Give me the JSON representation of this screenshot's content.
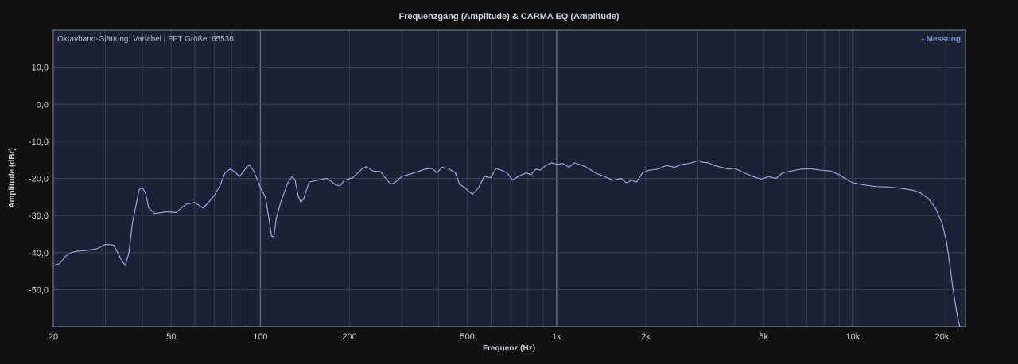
{
  "colors": {
    "background": "#111111",
    "plot_background": "#1b2233",
    "grid_minor": "#3a4254",
    "grid_major": "#5c6475",
    "axis_border": "#8a8f99",
    "series_line": "#9aa6d6",
    "legend_text": "#7e8fd6",
    "text": "#cfd3da"
  },
  "chart_data": {
    "type": "line",
    "title": "Frequenzgang (Amplitude) & CARMA EQ (Amplitude)",
    "annotation": "Oktavband-Glättung: Variabel | FFT Größe: 65536",
    "xlabel": "Frequenz (Hz)",
    "ylabel": "Amplitude (dBr)",
    "xscale": "log",
    "xlim": [
      20,
      24000
    ],
    "ylim": [
      -60,
      20
    ],
    "grid": true,
    "legend": {
      "position": "top-right",
      "entries": [
        "- Messung"
      ]
    },
    "x_ticks": [
      {
        "value": 20,
        "label": "20"
      },
      {
        "value": 50,
        "label": "50"
      },
      {
        "value": 100,
        "label": "100"
      },
      {
        "value": 200,
        "label": "200"
      },
      {
        "value": 500,
        "label": "500"
      },
      {
        "value": 1000,
        "label": "1k"
      },
      {
        "value": 2000,
        "label": "2k"
      },
      {
        "value": 5000,
        "label": "5k"
      },
      {
        "value": 10000,
        "label": "10k"
      },
      {
        "value": 20000,
        "label": "20k"
      }
    ],
    "y_ticks": [
      {
        "value": 10,
        "label": "10,0"
      },
      {
        "value": 0,
        "label": "0,0"
      },
      {
        "value": -10,
        "label": "-10,0"
      },
      {
        "value": -20,
        "label": "-20,0"
      },
      {
        "value": -30,
        "label": "-30,0"
      },
      {
        "value": -40,
        "label": "-40,0"
      },
      {
        "value": -50,
        "label": "-50,0"
      }
    ],
    "series": [
      {
        "name": "Messung",
        "points": [
          [
            20,
            -43.5
          ],
          [
            21,
            -43
          ],
          [
            22,
            -41
          ],
          [
            23,
            -40
          ],
          [
            24,
            -39.6
          ],
          [
            26,
            -39.4
          ],
          [
            28,
            -39
          ],
          [
            30,
            -37.8
          ],
          [
            32,
            -38
          ],
          [
            33,
            -40
          ],
          [
            34,
            -42
          ],
          [
            35,
            -43.5
          ],
          [
            36,
            -40
          ],
          [
            37,
            -32
          ],
          [
            39,
            -23
          ],
          [
            40,
            -22.5
          ],
          [
            41,
            -24
          ],
          [
            42,
            -28
          ],
          [
            44,
            -29.5
          ],
          [
            48,
            -29
          ],
          [
            52,
            -29.2
          ],
          [
            56,
            -27
          ],
          [
            60,
            -26.5
          ],
          [
            64,
            -28
          ],
          [
            66,
            -27
          ],
          [
            70,
            -24.5
          ],
          [
            73,
            -22
          ],
          [
            76,
            -18.5
          ],
          [
            79,
            -17.5
          ],
          [
            82,
            -18.2
          ],
          [
            85,
            -19.5
          ],
          [
            88,
            -18
          ],
          [
            90,
            -16.8
          ],
          [
            92,
            -16.5
          ],
          [
            95,
            -18
          ],
          [
            100,
            -22.5
          ],
          [
            104,
            -25
          ],
          [
            107,
            -31
          ],
          [
            109,
            -35.5
          ],
          [
            111,
            -35.8
          ],
          [
            113,
            -31
          ],
          [
            117,
            -26.5
          ],
          [
            124,
            -21
          ],
          [
            128,
            -19.5
          ],
          [
            131,
            -20.5
          ],
          [
            134,
            -24.5
          ],
          [
            137,
            -26.5
          ],
          [
            140,
            -25.5
          ],
          [
            146,
            -21
          ],
          [
            155,
            -20.5
          ],
          [
            168,
            -20
          ],
          [
            180,
            -21.8
          ],
          [
            186,
            -22
          ],
          [
            192,
            -20.5
          ],
          [
            205,
            -19.8
          ],
          [
            220,
            -17.5
          ],
          [
            228,
            -16.8
          ],
          [
            240,
            -18
          ],
          [
            255,
            -18.2
          ],
          [
            262,
            -19.5
          ],
          [
            275,
            -21.5
          ],
          [
            283,
            -21.3
          ],
          [
            300,
            -19.5
          ],
          [
            330,
            -18.5
          ],
          [
            360,
            -17.5
          ],
          [
            380,
            -17.3
          ],
          [
            395,
            -18.5
          ],
          [
            410,
            -17
          ],
          [
            430,
            -17.3
          ],
          [
            455,
            -18.5
          ],
          [
            470,
            -21.5
          ],
          [
            490,
            -22.5
          ],
          [
            505,
            -23.5
          ],
          [
            520,
            -24.3
          ],
          [
            545,
            -22.5
          ],
          [
            570,
            -19.5
          ],
          [
            600,
            -19.8
          ],
          [
            625,
            -17.3
          ],
          [
            650,
            -17.8
          ],
          [
            680,
            -18.5
          ],
          [
            710,
            -20.5
          ],
          [
            740,
            -19.5
          ],
          [
            790,
            -18.5
          ],
          [
            820,
            -19
          ],
          [
            850,
            -17.5
          ],
          [
            880,
            -17.8
          ],
          [
            920,
            -16.5
          ],
          [
            960,
            -15.8
          ],
          [
            1000,
            -16.2
          ],
          [
            1050,
            -16
          ],
          [
            1100,
            -17
          ],
          [
            1150,
            -15.8
          ],
          [
            1250,
            -16.8
          ],
          [
            1350,
            -18.5
          ],
          [
            1450,
            -19.5
          ],
          [
            1550,
            -20.5
          ],
          [
            1650,
            -20
          ],
          [
            1720,
            -21.2
          ],
          [
            1790,
            -20.5
          ],
          [
            1860,
            -21
          ],
          [
            1950,
            -18.5
          ],
          [
            2050,
            -17.8
          ],
          [
            2200,
            -17.5
          ],
          [
            2350,
            -16.5
          ],
          [
            2500,
            -17
          ],
          [
            2650,
            -16.2
          ],
          [
            2800,
            -16
          ],
          [
            3000,
            -15.2
          ],
          [
            3100,
            -15.6
          ],
          [
            3250,
            -15.8
          ],
          [
            3400,
            -16.5
          ],
          [
            3600,
            -17
          ],
          [
            3800,
            -17.5
          ],
          [
            4000,
            -17.3
          ],
          [
            4300,
            -18.5
          ],
          [
            4600,
            -19.5
          ],
          [
            4900,
            -20.2
          ],
          [
            5200,
            -19.5
          ],
          [
            5500,
            -20
          ],
          [
            5800,
            -18.5
          ],
          [
            6200,
            -18
          ],
          [
            6700,
            -17.5
          ],
          [
            7200,
            -17.4
          ],
          [
            7800,
            -17.8
          ],
          [
            8400,
            -18
          ],
          [
            9000,
            -19
          ],
          [
            9600,
            -20.5
          ],
          [
            10000,
            -21.2
          ],
          [
            11000,
            -21.8
          ],
          [
            12000,
            -22.2
          ],
          [
            13000,
            -22.3
          ],
          [
            14000,
            -22.5
          ],
          [
            15000,
            -22.8
          ],
          [
            16000,
            -23.2
          ],
          [
            17000,
            -24
          ],
          [
            18000,
            -25.5
          ],
          [
            19000,
            -28
          ],
          [
            20000,
            -32
          ],
          [
            20700,
            -37
          ],
          [
            21300,
            -44
          ],
          [
            21800,
            -50
          ],
          [
            22300,
            -55
          ],
          [
            22700,
            -58.5
          ],
          [
            23000,
            -60
          ]
        ]
      }
    ]
  }
}
